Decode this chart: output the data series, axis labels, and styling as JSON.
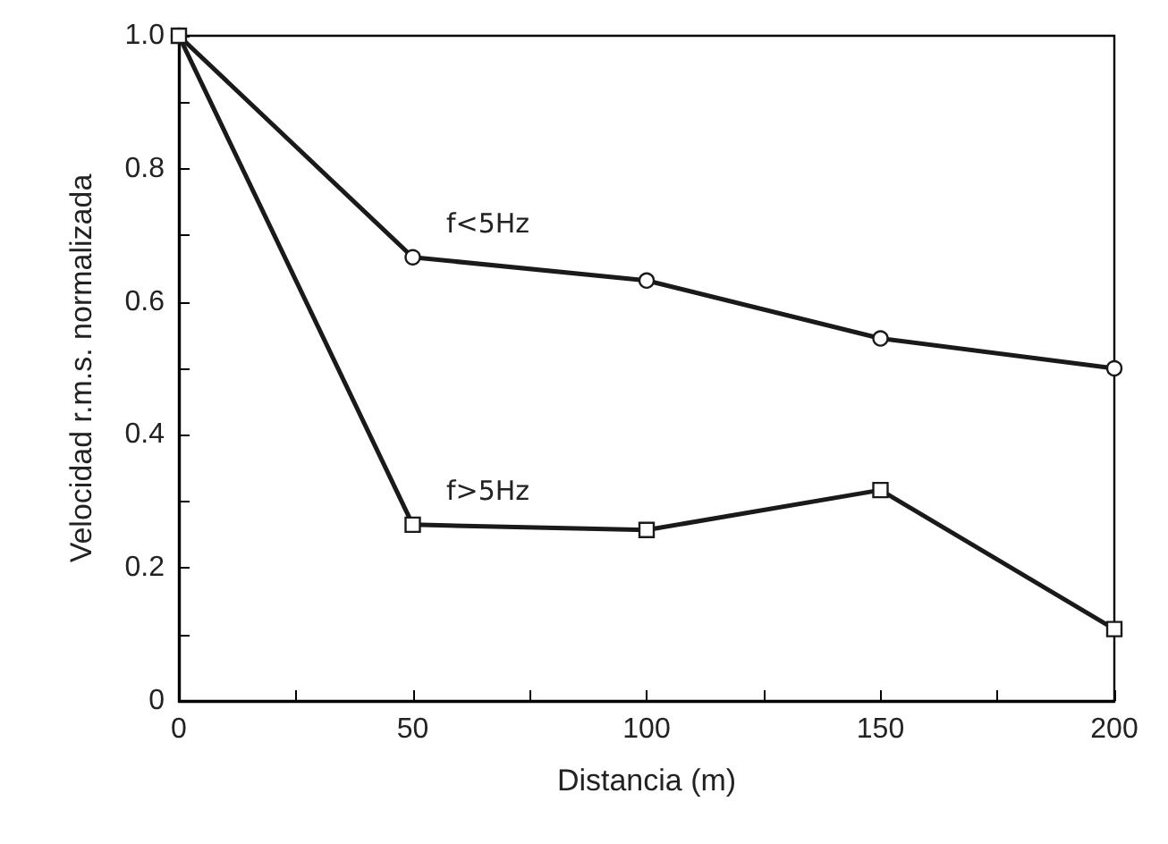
{
  "chart_data": {
    "type": "line",
    "xlabel": "Distancia (m)",
    "ylabel": "Velocidad r.m.s. normalizada",
    "x": [
      0,
      50,
      100,
      150,
      200
    ],
    "series": [
      {
        "name": "f<5Hz",
        "color": "#1a1a1a",
        "marker": "circle",
        "values": [
          1.0,
          0.667,
          0.632,
          0.545,
          0.5
        ]
      },
      {
        "name": "f>5Hz",
        "color": "#1a1a1a",
        "marker": "square",
        "values": [
          1.0,
          0.265,
          0.257,
          0.317,
          0.108
        ]
      }
    ],
    "xlim": [
      0,
      200
    ],
    "xticks": [
      0,
      {
        "value": 25,
        "label": null
      },
      50,
      {
        "value": 75,
        "label": null
      },
      100,
      {
        "value": 125,
        "label": null
      },
      150,
      {
        "value": 175,
        "label": null
      },
      200
    ],
    "ylim": [
      0,
      1
    ],
    "yticks": [
      0,
      {
        "value": 0.1,
        "label": null
      },
      {
        "value": 0.2,
        "label": "0.2"
      },
      {
        "value": 0.3,
        "label": null
      },
      {
        "value": 0.4,
        "label": "0.4"
      },
      {
        "value": 0.5,
        "label": null
      },
      {
        "value": 0.6,
        "label": "0.6"
      },
      {
        "value": 0.7,
        "label": null
      },
      {
        "value": 0.8,
        "label": "0.8"
      },
      {
        "value": 0.9,
        "label": null
      },
      {
        "value": 1,
        "label": "1.0"
      }
    ],
    "grid": false,
    "legend": false,
    "line_style": "solid"
  }
}
